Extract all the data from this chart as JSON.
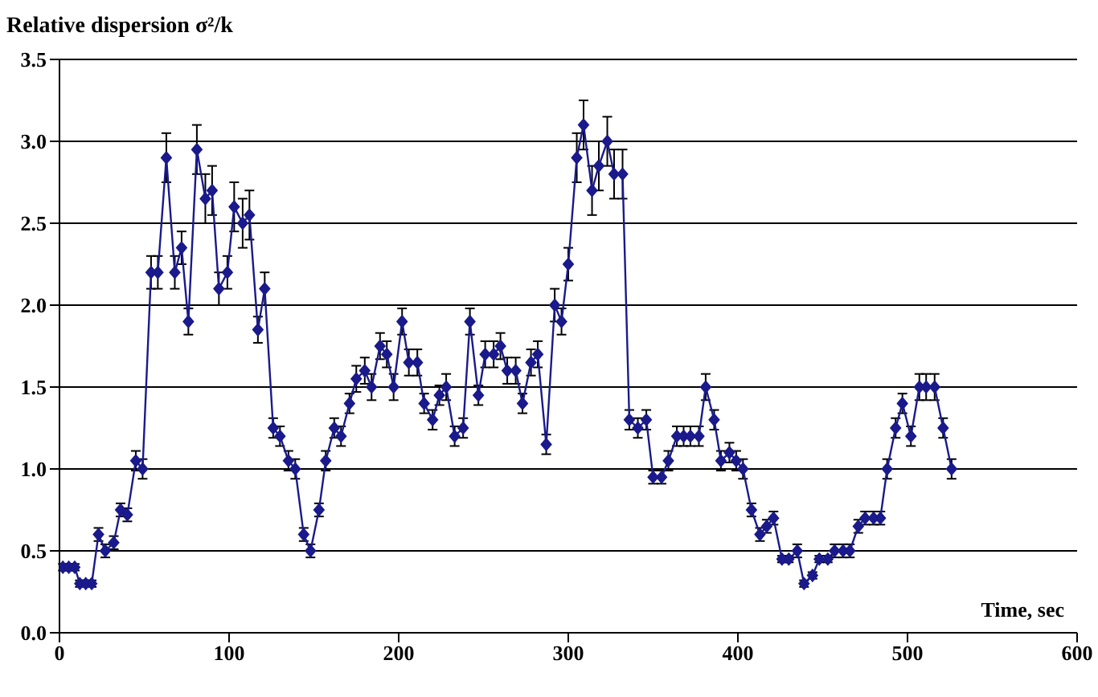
{
  "chart_data": {
    "type": "line",
    "ylabel": "Relative dispersion  σ²/k",
    "xlabel": "Time, sec",
    "x": [
      2,
      5.5,
      9,
      12,
      15.5,
      19,
      23,
      27,
      32,
      36,
      40,
      45,
      49,
      54,
      58,
      63,
      68,
      72,
      76,
      81,
      86,
      90,
      94,
      99,
      103,
      108,
      112,
      117,
      121,
      126,
      130,
      135,
      139,
      144,
      148,
      153,
      157,
      162,
      166,
      171,
      175,
      180,
      184,
      189,
      193,
      197,
      202,
      206,
      211,
      215,
      220,
      224,
      228,
      233,
      238,
      242,
      247,
      251,
      256,
      260,
      264,
      269,
      273,
      278,
      282,
      287,
      292,
      296,
      300,
      305,
      309,
      314,
      318,
      323,
      327,
      332,
      336,
      341,
      346,
      350,
      355,
      359,
      364,
      368,
      372,
      377,
      381,
      386,
      390,
      395,
      399,
      403,
      408,
      413,
      417,
      421,
      426,
      430,
      435,
      439,
      444,
      448,
      453,
      457,
      462,
      466,
      471,
      475,
      480,
      484,
      488,
      493,
      497,
      502,
      507,
      511,
      516,
      521,
      526
    ],
    "series": [
      {
        "color": "#1a1a8c",
        "values": [
          0.4,
          0.4,
          0.4,
          0.3,
          0.3,
          0.3,
          0.6,
          0.5,
          0.55,
          0.75,
          0.72,
          1.05,
          1.0,
          2.2,
          2.2,
          2.9,
          2.2,
          2.35,
          1.9,
          2.95,
          2.65,
          2.7,
          2.1,
          2.2,
          2.6,
          2.5,
          2.55,
          1.85,
          2.1,
          1.25,
          1.2,
          1.05,
          1.0,
          0.6,
          0.5,
          0.75,
          1.05,
          1.25,
          1.2,
          1.4,
          1.55,
          1.6,
          1.5,
          1.75,
          1.7,
          1.5,
          1.9,
          1.65,
          1.65,
          1.4,
          1.3,
          1.45,
          1.5,
          1.2,
          1.25,
          1.9,
          1.45,
          1.7,
          1.7,
          1.75,
          1.6,
          1.6,
          1.4,
          1.65,
          1.7,
          1.15,
          2.0,
          1.9,
          2.25,
          2.9,
          3.1,
          2.7,
          2.85,
          3.0,
          2.8,
          2.8,
          1.3,
          1.25,
          1.3,
          0.95,
          0.95,
          1.05,
          1.2,
          1.2,
          1.2,
          1.2,
          1.5,
          1.3,
          1.05,
          1.1,
          1.05,
          1.0,
          0.75,
          0.6,
          0.65,
          0.7,
          0.45,
          0.45,
          0.5,
          0.3,
          0.35,
          0.45,
          0.45,
          0.5,
          0.5,
          0.5,
          0.65,
          0.7,
          0.7,
          0.7,
          1.0,
          1.25,
          1.4,
          1.2,
          1.5,
          1.5,
          1.5,
          1.25,
          1.0
        ],
        "errors": [
          0.02,
          0.02,
          0.02,
          0.02,
          0.02,
          0.02,
          0.04,
          0.04,
          0.04,
          0.04,
          0.04,
          0.06,
          0.06,
          0.1,
          0.1,
          0.15,
          0.1,
          0.1,
          0.08,
          0.15,
          0.15,
          0.15,
          0.1,
          0.1,
          0.15,
          0.15,
          0.15,
          0.08,
          0.1,
          0.06,
          0.06,
          0.06,
          0.06,
          0.04,
          0.04,
          0.04,
          0.06,
          0.06,
          0.06,
          0.06,
          0.08,
          0.08,
          0.08,
          0.08,
          0.08,
          0.08,
          0.08,
          0.08,
          0.08,
          0.06,
          0.06,
          0.06,
          0.08,
          0.06,
          0.06,
          0.08,
          0.06,
          0.08,
          0.08,
          0.08,
          0.08,
          0.08,
          0.06,
          0.08,
          0.08,
          0.06,
          0.1,
          0.08,
          0.1,
          0.15,
          0.15,
          0.15,
          0.15,
          0.15,
          0.15,
          0.15,
          0.06,
          0.06,
          0.06,
          0.04,
          0.04,
          0.06,
          0.06,
          0.06,
          0.06,
          0.06,
          0.08,
          0.06,
          0.06,
          0.06,
          0.06,
          0.06,
          0.04,
          0.04,
          0.04,
          0.04,
          0.02,
          0.02,
          0.04,
          0.02,
          0.02,
          0.02,
          0.02,
          0.04,
          0.04,
          0.04,
          0.04,
          0.04,
          0.04,
          0.04,
          0.06,
          0.06,
          0.06,
          0.06,
          0.08,
          0.08,
          0.08,
          0.06,
          0.06
        ]
      }
    ],
    "xlim": [
      0,
      600
    ],
    "xticks": [
      0,
      100,
      200,
      300,
      400,
      500,
      600
    ],
    "ylim": [
      0,
      3.5
    ],
    "yticks": [
      {
        "value": 0,
        "label": "0.0"
      },
      {
        "value": 0.5,
        "label": "0.5"
      },
      {
        "value": 1,
        "label": "1.0"
      },
      {
        "value": 1.5,
        "label": "1.5"
      },
      {
        "value": 2,
        "label": "2.0"
      },
      {
        "value": 2.5,
        "label": "2.5"
      },
      {
        "value": 3,
        "label": "3.0"
      },
      {
        "value": 3.5,
        "label": "3.5"
      }
    ],
    "grid": "y",
    "legend": false,
    "marker": "diamond",
    "line_style": "solid"
  }
}
